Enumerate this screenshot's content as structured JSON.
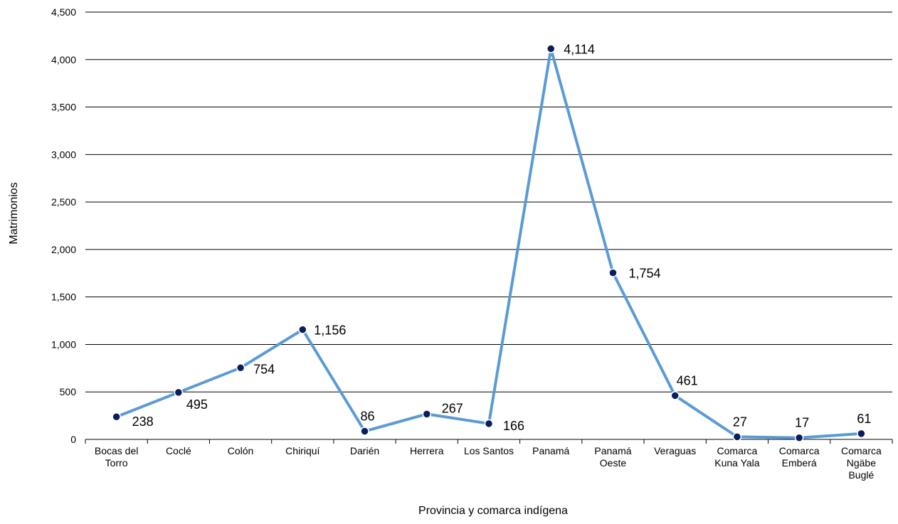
{
  "chart_data": {
    "type": "line",
    "title": "",
    "xlabel": "Provincia y comarca indígena",
    "ylabel": "Matrimonios",
    "ylim": [
      0,
      4500
    ],
    "yticks": [
      0,
      500,
      1000,
      1500,
      2000,
      2500,
      3000,
      3500,
      4000,
      4500
    ],
    "ytick_labels": [
      "0",
      "500",
      "1,000",
      "1,500",
      "2,000",
      "2,500",
      "3,000",
      "3,500",
      "4,000",
      "4,500"
    ],
    "grid": "horizontal",
    "categories": [
      [
        "Bocas del",
        "Torro"
      ],
      [
        "Coclé"
      ],
      [
        "Colón"
      ],
      [
        "Chiriquí"
      ],
      [
        "Darién"
      ],
      [
        "Herrera"
      ],
      [
        "Los Santos"
      ],
      [
        "Panamá"
      ],
      [
        "Panamá",
        "Oeste"
      ],
      [
        "Veraguas"
      ],
      [
        "Comarca",
        "Kuna Yala"
      ],
      [
        "Comarca",
        "Emberá"
      ],
      [
        "Comarca",
        "Ngäbe",
        "Buglé"
      ]
    ],
    "series": [
      {
        "values": [
          238,
          495,
          754,
          1156,
          86,
          267,
          166,
          4114,
          1754,
          461,
          27,
          17,
          61
        ],
        "labels": [
          "238",
          "495",
          "754",
          "1,156",
          "86",
          "267",
          "166",
          "4,114",
          "1,754",
          "461",
          "27",
          "17",
          "61"
        ],
        "line_color": "#5B9BD5",
        "marker_color": "#0B1E5B"
      }
    ]
  }
}
